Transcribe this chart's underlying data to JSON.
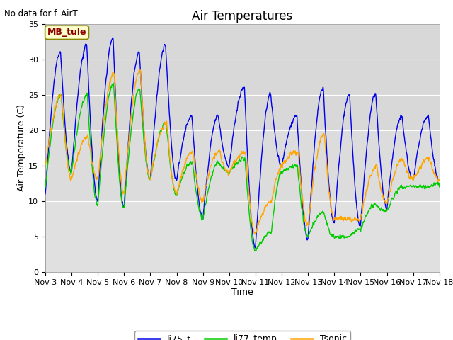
{
  "title": "Air Temperatures",
  "no_data_text": "No data for f_AirT",
  "annotation_text": "MB_tule",
  "xlabel": "Time",
  "ylabel": "Air Temperature (C)",
  "ylim": [
    0,
    35
  ],
  "yticks": [
    0,
    5,
    10,
    15,
    20,
    25,
    30,
    35
  ],
  "line_colors": {
    "li75_t": "#0000EE",
    "li77_temp": "#00CC00",
    "Tsonic": "#FFA500"
  },
  "background_color": "#DCDCDC",
  "plot_bg_color": "#DCDCDC",
  "title_fontsize": 12,
  "label_fontsize": 9,
  "tick_fontsize": 8
}
